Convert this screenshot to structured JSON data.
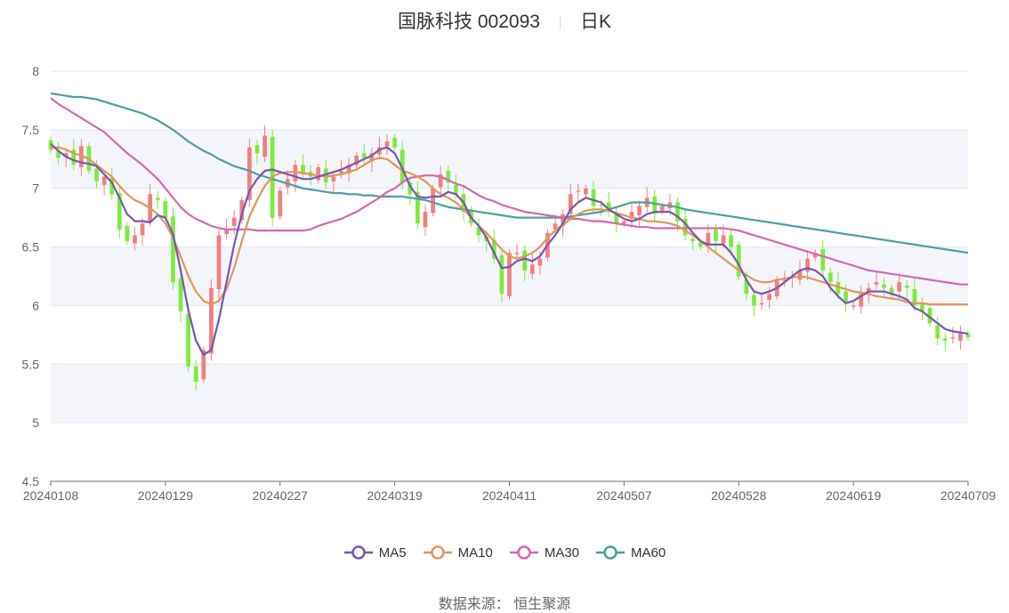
{
  "title": {
    "name": "国脉科技 002093",
    "period": "日K"
  },
  "source": "数据来源： 恒生聚源",
  "colors": {
    "up": "#f08080",
    "down": "#7eea3c",
    "band": "#f4f5fb",
    "grid": "#e2e5ef",
    "MA5": "#7857b1",
    "MA10": "#e0975a",
    "MA30": "#d468b2",
    "MA60": "#4e9e9f"
  },
  "chart_data": {
    "type": "candlestick",
    "ylim": [
      4.5,
      8
    ],
    "yticks": [
      "4.5",
      "5",
      "5.5",
      "6",
      "6.5",
      "7",
      "7.5",
      "8"
    ],
    "xticks": [
      "20240108",
      "20240129",
      "20240227",
      "20240319",
      "20240411",
      "20240507",
      "20240528",
      "20240619",
      "20240709"
    ],
    "xtick_index": [
      0,
      15,
      30,
      45,
      60,
      75,
      90,
      105,
      120
    ],
    "legend": [
      "MA5",
      "MA10",
      "MA30",
      "MA60"
    ],
    "closes": [
      7.33,
      7.26,
      7.3,
      7.2,
      7.36,
      7.15,
      7.06,
      7.1,
      6.95,
      6.65,
      6.55,
      6.6,
      6.7,
      6.95,
      6.9,
      6.75,
      6.2,
      5.95,
      5.48,
      5.35,
      5.62,
      6.15,
      6.6,
      6.65,
      6.75,
      6.9,
      7.35,
      7.3,
      7.45,
      6.75,
      6.98,
      7.08,
      7.2,
      7.12,
      7.1,
      7.18,
      7.05,
      7.1,
      7.15,
      7.2,
      7.28,
      7.26,
      7.3,
      7.35,
      7.4,
      7.35,
      7.05,
      6.95,
      6.7,
      6.8,
      7.0,
      7.12,
      7.05,
      6.95,
      6.8,
      6.7,
      6.6,
      6.55,
      6.4,
      6.1,
      6.45,
      6.45,
      6.3,
      6.35,
      6.4,
      6.62,
      6.7,
      6.78,
      6.95,
      6.98,
      7.0,
      6.85,
      6.85,
      6.8,
      6.7,
      6.72,
      6.8,
      6.85,
      6.92,
      6.78,
      6.85,
      6.88,
      6.72,
      6.6,
      6.55,
      6.5,
      6.62,
      6.55,
      6.6,
      6.5,
      6.25,
      6.1,
      6.0,
      6.02,
      6.1,
      6.22,
      6.22,
      6.25,
      6.3,
      6.4,
      6.45,
      6.3,
      6.2,
      6.1,
      6.02,
      6.0,
      6.1,
      6.15,
      6.2,
      6.15,
      6.1,
      6.2,
      6.15,
      6.0,
      5.95,
      5.85,
      5.72,
      5.7,
      5.73,
      5.77,
      5.73
    ],
    "MA5": [
      7.38,
      7.32,
      7.27,
      7.24,
      7.22,
      7.21,
      7.19,
      7.12,
      7.05,
      6.92,
      6.78,
      6.72,
      6.72,
      6.71,
      6.77,
      6.75,
      6.61,
      6.3,
      5.96,
      5.7,
      5.58,
      5.62,
      5.88,
      6.2,
      6.52,
      6.78,
      6.98,
      7.08,
      7.15,
      7.16,
      7.14,
      7.12,
      7.1,
      7.08,
      7.08,
      7.1,
      7.12,
      7.14,
      7.16,
      7.19,
      7.22,
      7.25,
      7.28,
      7.33,
      7.35,
      7.3,
      7.17,
      7.02,
      6.93,
      6.92,
      6.93,
      6.93,
      6.97,
      6.95,
      6.88,
      6.75,
      6.68,
      6.58,
      6.45,
      6.32,
      6.33,
      6.38,
      6.4,
      6.38,
      6.42,
      6.52,
      6.6,
      6.7,
      6.82,
      6.88,
      6.92,
      6.9,
      6.88,
      6.82,
      6.78,
      6.74,
      6.72,
      6.74,
      6.78,
      6.8,
      6.8,
      6.8,
      6.76,
      6.7,
      6.62,
      6.55,
      6.52,
      6.52,
      6.52,
      6.45,
      6.35,
      6.22,
      6.12,
      6.1,
      6.12,
      6.15,
      6.2,
      6.25,
      6.3,
      6.32,
      6.3,
      6.25,
      6.15,
      6.08,
      6.02,
      6.04,
      6.08,
      6.12,
      6.12,
      6.12,
      6.1,
      6.08,
      6.05,
      5.98,
      5.95,
      5.9,
      5.85,
      5.8,
      5.78,
      5.77,
      5.76
    ],
    "MA10": [
      7.35,
      7.35,
      7.33,
      7.3,
      7.28,
      7.25,
      7.2,
      7.15,
      7.1,
      7.02,
      6.95,
      6.9,
      6.87,
      6.83,
      6.78,
      6.7,
      6.58,
      6.42,
      6.25,
      6.12,
      6.04,
      6.01,
      6.04,
      6.14,
      6.32,
      6.55,
      6.76,
      6.9,
      7.02,
      7.1,
      7.13,
      7.14,
      7.14,
      7.13,
      7.12,
      7.11,
      7.1,
      7.11,
      7.12,
      7.14,
      7.16,
      7.2,
      7.24,
      7.26,
      7.25,
      7.2,
      7.15,
      7.13,
      7.1,
      7.06,
      7.0,
      6.95,
      6.92,
      6.88,
      6.82,
      6.75,
      6.68,
      6.62,
      6.55,
      6.48,
      6.42,
      6.4,
      6.42,
      6.45,
      6.5,
      6.58,
      6.64,
      6.69,
      6.74,
      6.78,
      6.81,
      6.82,
      6.82,
      6.81,
      6.79,
      6.77,
      6.75,
      6.74,
      6.72,
      6.72,
      6.71,
      6.7,
      6.68,
      6.64,
      6.6,
      6.55,
      6.5,
      6.45,
      6.4,
      6.35,
      6.3,
      6.26,
      6.22,
      6.2,
      6.2,
      6.22,
      6.23,
      6.24,
      6.25,
      6.24,
      6.22,
      6.2,
      6.18,
      6.16,
      6.14,
      6.12,
      6.11,
      6.1,
      6.08,
      6.07,
      6.06,
      6.05,
      6.03,
      6.02,
      6.02,
      6.01,
      6.01,
      6.01,
      6.01,
      6.01,
      6.01
    ],
    "MA30": [
      7.77,
      7.72,
      7.68,
      7.64,
      7.6,
      7.56,
      7.52,
      7.48,
      7.42,
      7.36,
      7.3,
      7.25,
      7.2,
      7.14,
      7.08,
      7.0,
      6.92,
      6.84,
      6.78,
      6.74,
      6.71,
      6.68,
      6.66,
      6.65,
      6.65,
      6.65,
      6.65,
      6.64,
      6.64,
      6.64,
      6.64,
      6.64,
      6.64,
      6.64,
      6.65,
      6.68,
      6.7,
      6.72,
      6.74,
      6.77,
      6.8,
      6.84,
      6.88,
      6.92,
      6.97,
      7.0,
      7.05,
      7.09,
      7.1,
      7.11,
      7.11,
      7.1,
      7.07,
      7.04,
      7.02,
      6.98,
      6.94,
      6.91,
      6.89,
      6.86,
      6.84,
      6.82,
      6.8,
      6.79,
      6.78,
      6.77,
      6.76,
      6.75,
      6.74,
      6.74,
      6.73,
      6.72,
      6.72,
      6.71,
      6.7,
      6.69,
      6.68,
      6.67,
      6.67,
      6.66,
      6.66,
      6.66,
      6.66,
      6.66,
      6.66,
      6.66,
      6.66,
      6.66,
      6.66,
      6.65,
      6.64,
      6.62,
      6.6,
      6.58,
      6.56,
      6.54,
      6.52,
      6.5,
      6.48,
      6.46,
      6.44,
      6.42,
      6.4,
      6.38,
      6.36,
      6.34,
      6.32,
      6.3,
      6.29,
      6.28,
      6.27,
      6.26,
      6.25,
      6.24,
      6.23,
      6.22,
      6.21,
      6.2,
      6.19,
      6.18,
      6.18
    ],
    "MA60": [
      7.81,
      7.8,
      7.79,
      7.78,
      7.78,
      7.77,
      7.76,
      7.74,
      7.72,
      7.7,
      7.68,
      7.66,
      7.64,
      7.61,
      7.58,
      7.54,
      7.5,
      7.45,
      7.4,
      7.36,
      7.32,
      7.29,
      7.25,
      7.22,
      7.19,
      7.17,
      7.15,
      7.12,
      7.1,
      7.08,
      7.06,
      7.04,
      7.02,
      7.0,
      6.99,
      6.98,
      6.97,
      6.96,
      6.96,
      6.95,
      6.95,
      6.94,
      6.94,
      6.93,
      6.93,
      6.93,
      6.93,
      6.92,
      6.91,
      6.9,
      6.88,
      6.86,
      6.84,
      6.83,
      6.82,
      6.81,
      6.8,
      6.79,
      6.78,
      6.77,
      6.76,
      6.75,
      6.75,
      6.75,
      6.75,
      6.75,
      6.75,
      6.75,
      6.76,
      6.77,
      6.78,
      6.79,
      6.8,
      6.82,
      6.84,
      6.86,
      6.88,
      6.88,
      6.88,
      6.87,
      6.86,
      6.85,
      6.84,
      6.82,
      6.81,
      6.8,
      6.79,
      6.78,
      6.77,
      6.76,
      6.75,
      6.74,
      6.73,
      6.72,
      6.71,
      6.7,
      6.69,
      6.68,
      6.67,
      6.66,
      6.65,
      6.64,
      6.63,
      6.62,
      6.61,
      6.6,
      6.59,
      6.58,
      6.57,
      6.56,
      6.55,
      6.54,
      6.53,
      6.52,
      6.51,
      6.5,
      6.49,
      6.48,
      6.47,
      6.46,
      6.45
    ]
  }
}
